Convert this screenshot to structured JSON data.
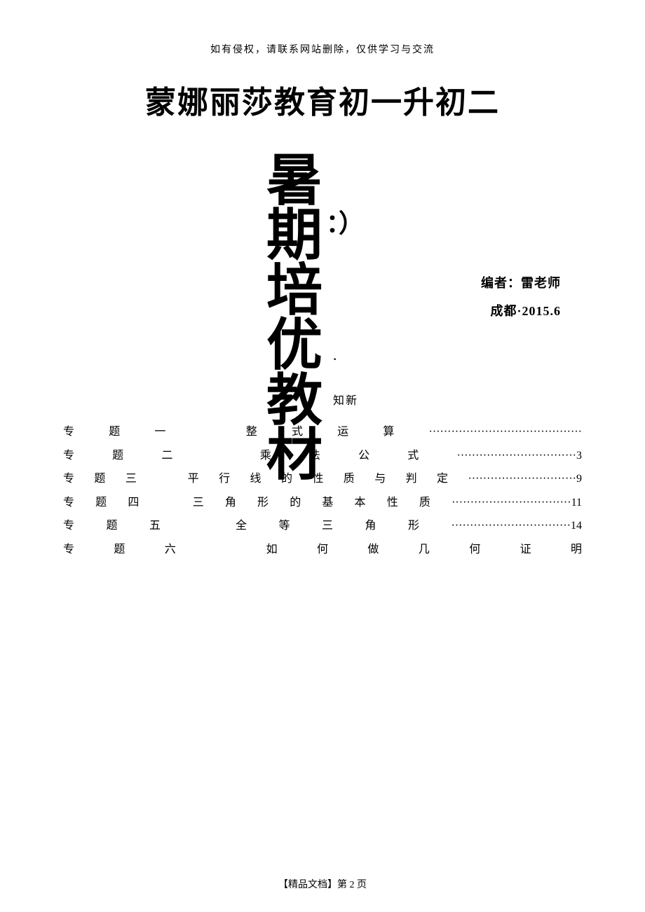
{
  "header_notice": "如有侵权，请联系网站删除，仅供学习与交流",
  "main_title": "蒙娜丽莎教育初一升初二",
  "vertical_title": {
    "c1": "暑",
    "c2": "期",
    "c3": "培",
    "c4": "优",
    "c5": "教",
    "c6": "材"
  },
  "paren_text": "：）",
  "author_label": "编者：雷老师",
  "location_date": "成都·2015.6",
  "small_mark": "·",
  "section_title": "知新",
  "toc": {
    "t1": "专题一　整式运算·········································",
    "t2": "专题二　乘法公式································3",
    "t3": "专题三　平行线的性质与判定·····························9",
    "t4": "专题四　三角形的基本性质································11",
    "t5": "专题五　全等三角形································14",
    "t6": "专题六　如何做几何证明"
  },
  "footer_text": "【精品文档】第 2 页",
  "colors": {
    "background": "#ffffff",
    "text": "#000000"
  },
  "typography": {
    "body_font": "SimSun",
    "main_title_size": 44,
    "vertical_char_size": 80,
    "toc_size": 16,
    "header_size": 14,
    "info_size": 18
  }
}
